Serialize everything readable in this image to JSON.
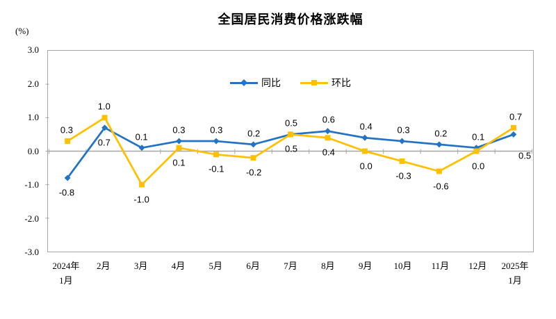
{
  "chart_data": {
    "type": "line",
    "title": "全国居民消费价格涨跌幅",
    "ylabel": "(%)",
    "xlabel": "",
    "categories": [
      "2024年\n1月",
      "2月",
      "3月",
      "4月",
      "5月",
      "6月",
      "7月",
      "8月",
      "9月",
      "10月",
      "11月",
      "12月",
      "2025年\n1月"
    ],
    "series": [
      {
        "name": "同比",
        "color": "#2272C6",
        "marker": "diamond",
        "values": [
          -0.8,
          0.7,
          0.1,
          0.3,
          0.3,
          0.2,
          0.5,
          0.6,
          0.4,
          0.3,
          0.2,
          0.1,
          0.5
        ],
        "label_sides": [
          "below",
          "below",
          "above",
          "above",
          "above",
          "above",
          "above",
          "above",
          "above",
          "above",
          "above",
          "above",
          "below"
        ],
        "label_offsets": {
          "12": [
            13,
            10
          ]
        }
      },
      {
        "name": "环比",
        "color": "#FFC000",
        "marker": "square",
        "values": [
          0.3,
          1.0,
          -1.0,
          0.1,
          -0.1,
          -0.2,
          0.5,
          0.4,
          0.0,
          -0.3,
          -0.6,
          0.0,
          0.7
        ],
        "label_sides": [
          "above",
          "above",
          "below",
          "below",
          "below",
          "below",
          "below",
          "below",
          "below",
          "below",
          "below",
          "below",
          "above"
        ]
      }
    ],
    "ylim": [
      -3.0,
      3.0
    ],
    "yticks": [
      "3.0",
      "2.0",
      "1.0",
      "0.0",
      "-1.0",
      "-2.0",
      "-3.0"
    ],
    "grid": false,
    "axis_color": "#A6A6A6",
    "legend_position": "top-center"
  }
}
